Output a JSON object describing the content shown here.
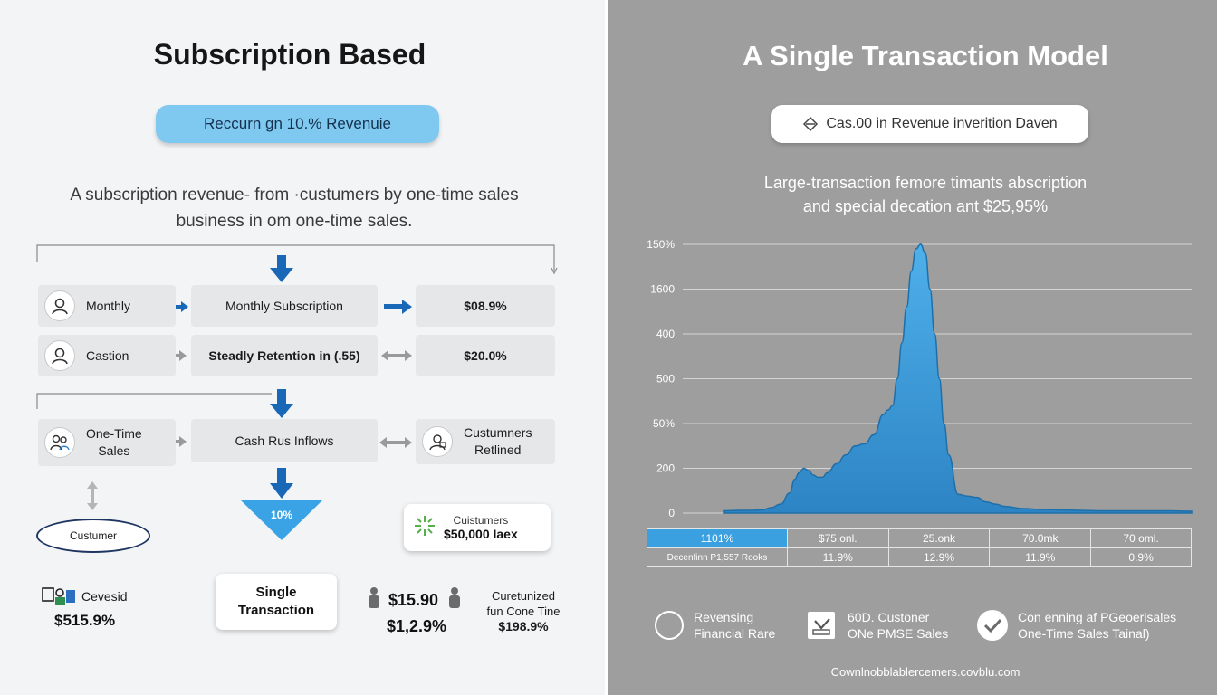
{
  "left": {
    "title": "Subscription Based",
    "pill": "Reccurn gn 10.% Revenuie",
    "description": [
      "A subscription  revenue- from ·custumers by one-time sales",
      "business in om one-time sales."
    ],
    "rows": [
      {
        "left": "Monthly",
        "middle": "Monthly Subscription",
        "right": "$08.9%"
      },
      {
        "left": "Castion",
        "middle": "Steadly Retention in (.55)",
        "right": "$20.0%"
      },
      {
        "left": [
          "One-Time",
          "Sales"
        ],
        "middle": "Cash Rus Inflows",
        "right": [
          "Custumners",
          "Retlined"
        ]
      }
    ],
    "funnel_label": "10%",
    "oval_label": "Custumer",
    "customers_card": {
      "title": "Cuistumers",
      "value": "$50,000 Iaex"
    },
    "single_card": [
      "Single",
      "Transaction"
    ],
    "stat_left": {
      "label": "Cevesid",
      "value": "$515.9%"
    },
    "stat_mid": {
      "value1": "$15.90",
      "value2": "$1,2.9%"
    },
    "stat_right": {
      "line1": "Curetunized",
      "line2": "fun Cone Tine",
      "value": "$198.9%"
    },
    "colors": {
      "accent": "#1868b7",
      "pill": "#7fc9f1",
      "funnel": "#3aa3e6"
    }
  },
  "right": {
    "title": "A Single Transaction Model",
    "pill": "Cas.00 in Revenue inverition Daven",
    "description": [
      "Large-transaction femore timants abscription",
      "and special decation ant $25,95%"
    ],
    "table": [
      [
        "1101%",
        "$75 onl.",
        "25.onk",
        "70.0mk",
        "70 oml."
      ],
      [
        "Decenfinn P1,557 Rooks",
        "11.9%",
        "12.9%",
        "11.9%",
        "0.9%"
      ]
    ],
    "legend": [
      [
        "Revensing",
        "Financial Rare"
      ],
      [
        "60D. Custoner",
        "ONe PMSE Sales"
      ],
      [
        "Con enning af PGeoerisales",
        "One-Time Sales Tainal)"
      ]
    ],
    "footer": "Cownlnobblablercemers.covblu.com"
  },
  "chart_data": {
    "type": "area",
    "title": "A Single Transaction Model",
    "y_tick_labels": [
      "150%",
      "1600",
      "400",
      "500",
      "50%",
      "200",
      "0"
    ],
    "x": [
      0,
      3,
      6,
      8,
      10,
      12,
      14,
      15,
      16,
      17,
      18,
      19,
      20,
      21,
      22,
      24,
      26,
      28,
      30,
      32,
      34,
      35,
      36,
      37,
      38,
      39,
      40,
      41,
      42,
      43,
      44,
      45,
      46,
      47,
      48,
      50,
      52,
      54,
      56,
      58,
      60,
      64,
      68,
      72,
      76,
      80,
      85,
      90,
      95,
      100
    ],
    "values": [
      0.05,
      0.06,
      0.06,
      0.07,
      0.12,
      0.2,
      0.45,
      0.75,
      0.9,
      1.0,
      0.95,
      0.85,
      0.8,
      0.8,
      0.9,
      1.1,
      1.3,
      1.5,
      1.55,
      1.75,
      2.2,
      2.3,
      2.4,
      3.0,
      3.8,
      4.6,
      5.4,
      5.9,
      6.0,
      5.8,
      5.0,
      4.0,
      3.0,
      2.0,
      1.3,
      0.42,
      0.38,
      0.35,
      0.25,
      0.2,
      0.15,
      0.1,
      0.08,
      0.07,
      0.06,
      0.05,
      0.05,
      0.05,
      0.05,
      0.04
    ],
    "ylim": [
      0,
      6.0
    ],
    "gridlines": 7,
    "color": "#3a98d6"
  }
}
